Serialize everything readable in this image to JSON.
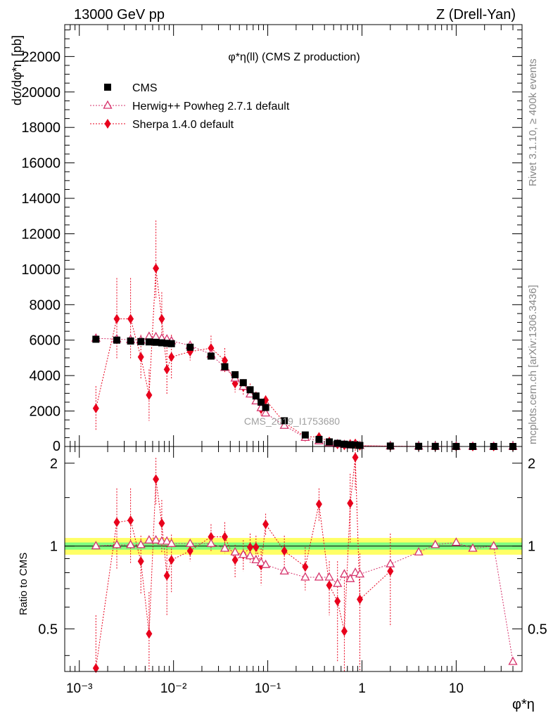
{
  "header": {
    "left": "13000 GeV pp",
    "right": "Z (Drell-Yan)"
  },
  "sidebar": {
    "rivet": "Rivet 3.1.10, ≥ 400k events",
    "mcplots": "mcplots.cern.ch [arXiv:1306.3436]"
  },
  "watermark": "CMS_2019_I1753680",
  "chart_data": [
    {
      "type": "scatter",
      "title": "φ*η(ll) (CMS Z production)",
      "ylabel": "dσ/dφ*η [pb]",
      "xscale": "log",
      "xlim": [
        0.0007,
        50
      ],
      "ylim": [
        0,
        23800
      ],
      "yticks": [
        2000,
        4000,
        6000,
        8000,
        10000,
        12000,
        14000,
        16000,
        18000,
        20000,
        22000
      ],
      "yticklabels": [
        "2000",
        "4000",
        "6000",
        "8000",
        "10000",
        "12000",
        "14000",
        "16000",
        "18000",
        "20000",
        "22000"
      ],
      "legend_placement": "top-left",
      "series": [
        {
          "name": "CMS",
          "color": "#000000",
          "marker": "square",
          "x": [
            0.0015,
            0.0025,
            0.0035,
            0.0045,
            0.0055,
            0.0065,
            0.0075,
            0.0085,
            0.0095,
            0.015,
            0.025,
            0.035,
            0.045,
            0.055,
            0.065,
            0.075,
            0.085,
            0.095,
            0.15,
            0.25,
            0.35,
            0.45,
            0.55,
            0.65,
            0.75,
            0.85,
            0.95,
            2,
            4,
            6,
            10,
            15,
            25,
            40
          ],
          "y": [
            6050,
            6000,
            5950,
            5920,
            5900,
            5880,
            5850,
            5820,
            5800,
            5600,
            5100,
            4500,
            4050,
            3600,
            3200,
            2850,
            2500,
            2200,
            1450,
            650,
            400,
            260,
            180,
            130,
            100,
            80,
            60,
            25,
            10,
            6,
            3,
            1.5,
            0.8,
            0.4
          ]
        },
        {
          "name": "Herwig++ Powheg 2.7.1 default",
          "color": "#d6336c",
          "marker": "open-triangle",
          "x": [
            0.0015,
            0.0025,
            0.0035,
            0.0045,
            0.0055,
            0.0065,
            0.0075,
            0.0085,
            0.0095,
            0.015,
            0.025,
            0.035,
            0.045,
            0.055,
            0.065,
            0.075,
            0.085,
            0.095,
            0.15,
            0.25,
            0.35,
            0.45,
            0.55,
            0.65,
            0.75,
            0.85,
            0.95,
            2,
            4,
            6,
            10,
            15,
            25,
            40
          ],
          "y": [
            6100,
            6060,
            6020,
            5990,
            6200,
            6180,
            6100,
            6050,
            5950,
            5700,
            5200,
            4450,
            3850,
            3380,
            2950,
            2560,
            2180,
            1880,
            1180,
            500,
            310,
            200,
            140,
            104,
            76,
            64,
            47,
            21,
            9,
            6,
            3,
            1.4,
            0.8,
            0.15
          ]
        },
        {
          "name": "Sherpa 1.4.0 default",
          "color": "#e8001c",
          "marker": "diamond",
          "x": [
            0.0015,
            0.0025,
            0.0035,
            0.0045,
            0.0055,
            0.0065,
            0.0075,
            0.0085,
            0.0095,
            0.015,
            0.025,
            0.035,
            0.045,
            0.055,
            0.065,
            0.075,
            0.085,
            0.095,
            0.15,
            0.25,
            0.35,
            0.45,
            0.55,
            0.65,
            0.75,
            0.85,
            0.95,
            2,
            4,
            6,
            10,
            15,
            25,
            40
          ],
          "y": [
            2150,
            7200,
            7200,
            5050,
            2900,
            10050,
            7200,
            4350,
            5050,
            5350,
            5550,
            4850,
            3550,
            3350,
            3150,
            2800,
            2100,
            2620,
            1350,
            550,
            540,
            280,
            120,
            65,
            145,
            170,
            39,
            20,
            4,
            2,
            1,
            0.5,
            0.2,
            0.05
          ],
          "err_lo": [
            1250,
            2300,
            2300,
            1250,
            1450,
            1700,
            1500,
            1400,
            1250,
            500,
            700,
            700,
            500,
            450,
            400,
            300,
            350,
            250,
            200,
            100,
            80,
            60,
            50,
            40,
            40,
            50,
            20,
            8,
            3,
            2,
            1,
            0.5,
            0.2,
            0.05
          ],
          "err_hi": [
            1250,
            2300,
            2300,
            1250,
            1450,
            2700,
            1500,
            1400,
            1250,
            500,
            700,
            700,
            500,
            450,
            400,
            300,
            350,
            250,
            200,
            100,
            80,
            60,
            50,
            40,
            40,
            50,
            20,
            8,
            3,
            2,
            1,
            0.5,
            0.2,
            0.05
          ]
        }
      ]
    },
    {
      "type": "scatter",
      "ylabel": "Ratio to CMS",
      "xlabel": "φ*η",
      "xscale": "log",
      "xlim": [
        0.0007,
        50
      ],
      "ylim": [
        0.35,
        2.3
      ],
      "yticks": [
        0.5,
        1,
        2
      ],
      "yticklabels": [
        "0.5",
        "1",
        "2"
      ],
      "xticks": [
        0.001,
        0.01,
        0.1,
        1,
        10
      ],
      "xticklabels": [
        "10⁻³",
        "10⁻²",
        "10⁻¹",
        "1",
        "10"
      ],
      "band": {
        "inner": [
          0.97,
          1.03
        ],
        "outer": [
          0.93,
          1.07
        ],
        "inner_color": "#7fff7f",
        "outer_color": "#ffff66"
      },
      "series": [
        {
          "name": "Herwig++ Powheg 2.7.1 default",
          "color": "#d6336c",
          "marker": "open-triangle",
          "x": [
            0.0015,
            0.0025,
            0.0035,
            0.0045,
            0.0055,
            0.0065,
            0.0075,
            0.0085,
            0.0095,
            0.015,
            0.025,
            0.035,
            0.045,
            0.055,
            0.065,
            0.075,
            0.085,
            0.095,
            0.15,
            0.25,
            0.35,
            0.45,
            0.55,
            0.65,
            0.75,
            0.85,
            0.95,
            2,
            4,
            6,
            10,
            15,
            25,
            40
          ],
          "y": [
            1.0,
            1.01,
            1.01,
            1.01,
            1.05,
            1.05,
            1.04,
            1.04,
            1.02,
            1.02,
            1.02,
            0.98,
            0.95,
            0.93,
            0.92,
            0.89,
            0.87,
            0.855,
            0.81,
            0.77,
            0.77,
            0.77,
            0.73,
            0.79,
            0.76,
            0.8,
            0.79,
            0.86,
            0.95,
            1.01,
            1.03,
            0.98,
            1.0,
            0.38
          ]
        },
        {
          "name": "Sherpa 1.4.0 default",
          "color": "#e8001c",
          "marker": "diamond",
          "x": [
            0.0015,
            0.0025,
            0.0035,
            0.0045,
            0.0055,
            0.0065,
            0.0075,
            0.0085,
            0.0095,
            0.015,
            0.025,
            0.035,
            0.045,
            0.055,
            0.065,
            0.075,
            0.085,
            0.095,
            0.15,
            0.25,
            0.35,
            0.45,
            0.55,
            0.65,
            0.75,
            0.85,
            0.95,
            2
          ],
          "y": [
            0.36,
            1.22,
            1.24,
            0.88,
            0.48,
            1.75,
            1.21,
            0.78,
            0.89,
            0.96,
            1.08,
            1.08,
            0.89,
            0.93,
            0.99,
            0.99,
            0.85,
            1.2,
            0.96,
            0.84,
            1.42,
            0.72,
            0.63,
            0.49,
            1.43,
            2.1,
            0.64,
            0.81
          ],
          "err_lo": [
            0.2,
            0.4,
            0.38,
            0.21,
            0.2,
            0.34,
            0.26,
            0.22,
            0.21,
            0.08,
            0.12,
            0.14,
            0.12,
            0.12,
            0.12,
            0.1,
            0.13,
            0.11,
            0.13,
            0.15,
            0.2,
            0.16,
            0.25,
            0.3,
            0.4,
            0.5,
            0.3,
            0.3
          ],
          "err_hi": [
            0.2,
            0.4,
            0.38,
            0.21,
            0.2,
            0.34,
            0.26,
            0.22,
            0.21,
            0.08,
            0.12,
            0.14,
            0.12,
            0.12,
            0.12,
            0.1,
            0.13,
            0.11,
            0.13,
            0.15,
            0.2,
            0.16,
            0.25,
            0.3,
            0.4,
            0.5,
            0.3,
            0.3
          ]
        }
      ]
    }
  ]
}
